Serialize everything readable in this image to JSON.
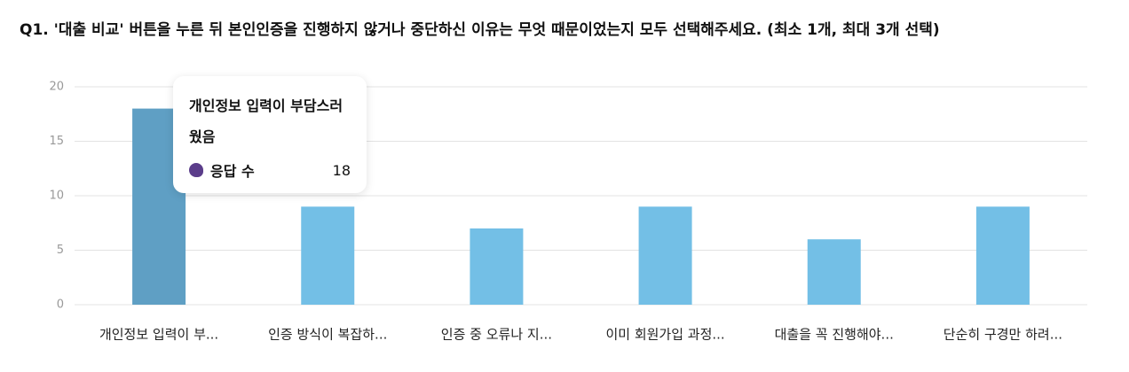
{
  "chart_data": {
    "type": "bar",
    "title": "Q1. '대출 비교' 버튼을 누른 뒤 본인인증을 진행하지 않거나 중단하신 이유는 무엇 때문이었는지 모두 선택해주세요. (최소 1개, 최대 3개 선택)",
    "categories": [
      "개인정보 입력이 부...",
      "인증 방식이 복잡하...",
      "인증 중 오류나 지...",
      "이미 회원가입 과정...",
      "대출을 꼭 진행해야...",
      "단순히 구경만 하려..."
    ],
    "series": [
      {
        "name": "응답 수",
        "color": "#73bfe6",
        "values": [
          18,
          9,
          7,
          9,
          6,
          9
        ]
      }
    ],
    "ylim": [
      0,
      20
    ],
    "yticks": [
      0,
      5,
      10,
      15,
      20
    ],
    "grid": true,
    "tooltip": {
      "index": 0,
      "title": "개인정보 입력이 부담스러웠음",
      "color": "#5f9fc4"
    }
  }
}
